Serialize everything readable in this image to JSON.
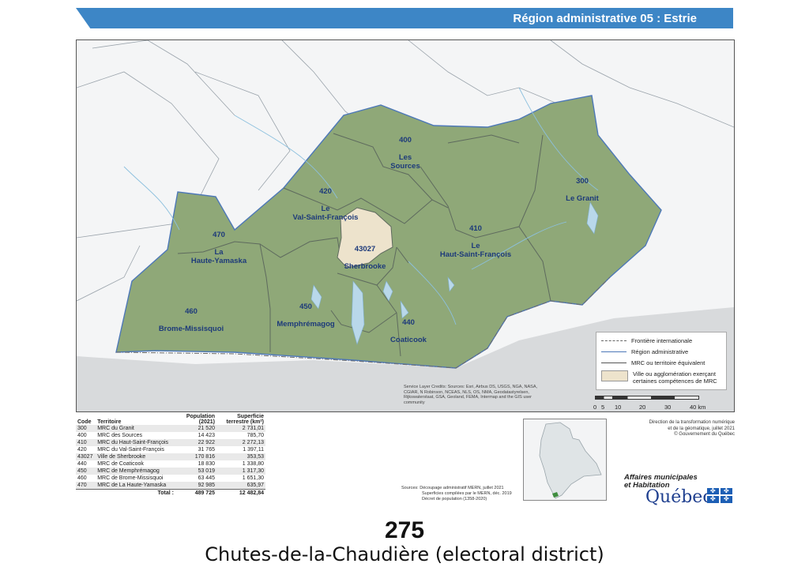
{
  "header": {
    "title": "Région administrative 05 :  Estrie"
  },
  "mrc_labels": [
    {
      "code": "400",
      "name": "Les\nSources"
    },
    {
      "code": "420",
      "name": "Le\nVal-Saint-François"
    },
    {
      "code": "300",
      "name": "Le Granit"
    },
    {
      "code": "470",
      "name": "La\nHaute-Yamaska"
    },
    {
      "code": "43027",
      "name": "Sherbrooke"
    },
    {
      "code": "410",
      "name": "Le\nHaut-Saint-François"
    },
    {
      "code": "460",
      "name": "Brome-Missisquoi"
    },
    {
      "code": "450",
      "name": "Memphrémagog"
    },
    {
      "code": "440",
      "name": "Coaticook"
    }
  ],
  "legend": {
    "items": [
      "Frontière internationale",
      "Région administrative",
      "MRC ou territoire équivalent",
      "Ville ou agglomération exerçant certaines compétences de MRC"
    ]
  },
  "credits": "Service Layer Credits: Sources: Esri, Airbus DS, USGS, NGA, NASA, CGIAR, N Robinson, NCEAS, NLS, OS, NMA, Geodatastyrelsen, Rijkswaterstaat, GSA, Geoland, FEMA, Intermap and the GIS user community",
  "scale": {
    "ticks": [
      "0",
      "5",
      "10",
      "20",
      "30",
      "40 km"
    ]
  },
  "table": {
    "headers": [
      "Code",
      "Territoire",
      "Population (2021)",
      "Superficie terrestre (km²)"
    ],
    "rows": [
      [
        "300",
        "MRC du Granit",
        "21 520",
        "2 731,01"
      ],
      [
        "400",
        "MRC des Sources",
        "14 423",
        "785,70"
      ],
      [
        "410",
        "MRC du Haut-Saint-François",
        "22 922",
        "2 272,13"
      ],
      [
        "420",
        "MRC du Val-Saint-François",
        "31 765",
        "1 397,11"
      ],
      [
        "43027",
        "Ville de Sherbrooke",
        "170 816",
        "353,53"
      ],
      [
        "440",
        "MRC de Coaticook",
        "18 830",
        "1 338,80"
      ],
      [
        "450",
        "MRC de Memphrémagog",
        "53 019",
        "1 317,30"
      ],
      [
        "460",
        "MRC de Brome-Missisquoi",
        "63 445",
        "1 651,30"
      ],
      [
        "470",
        "MRC de La Haute-Yamaska",
        "92 985",
        "635,97"
      ]
    ],
    "total": {
      "label": "Total :",
      "population": "489 725",
      "area": "12 482,84"
    }
  },
  "sources": {
    "line1": "Sources: Découpage administratif MERN, juillet 2021",
    "line2": "Superficies compilées par le MERN, déc. 2019",
    "line3": "Décret de population (1358-2020)"
  },
  "direction": {
    "line1": "Direction de la transformation numérique",
    "line2": "et de la géomatique, juillet 2021",
    "line3": "© Gouvernement du Québec"
  },
  "ministry": {
    "line1": "Affaires municipales",
    "line2": "et Habitation",
    "quebec": "Québec"
  },
  "page_number": "275",
  "caption": "Chutes-de-la-Chaudière (electoral district)",
  "colors": {
    "region_fill": "#8fa878",
    "sherbrooke_fill": "#ede3cc",
    "header_blue": "#3d86c6",
    "water": "#b9d8ea",
    "us_land": "#d8dadc"
  }
}
